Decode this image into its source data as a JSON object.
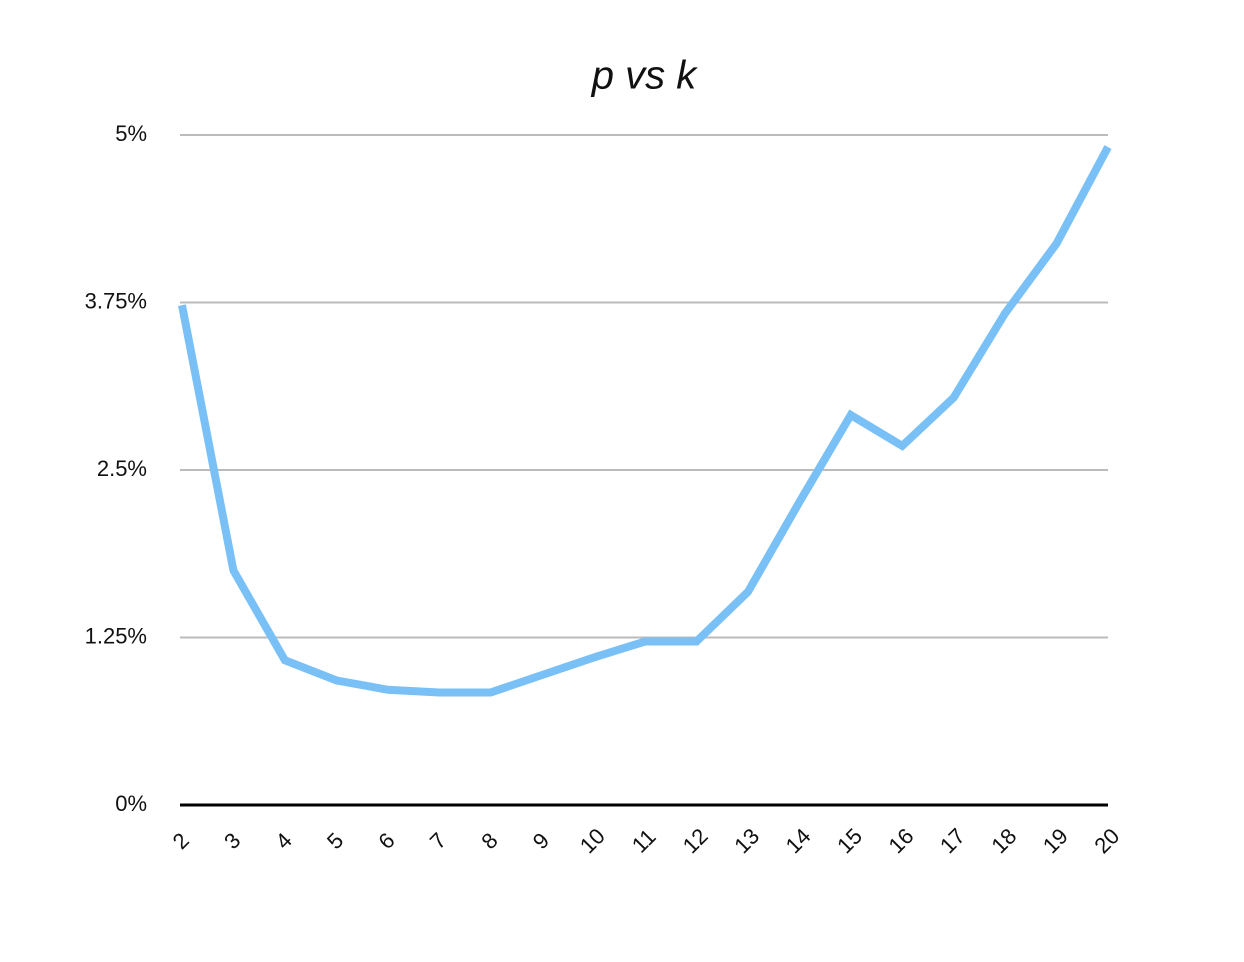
{
  "chart_data": {
    "type": "line",
    "title": "p vs k",
    "categories": [
      "2",
      "3",
      "4",
      "5",
      "6",
      "7",
      "8",
      "9",
      "10",
      "11",
      "12",
      "13",
      "14",
      "15",
      "16",
      "17",
      "18",
      "19",
      "20"
    ],
    "series": [
      {
        "name": "p",
        "color": "#79c0f7",
        "values": [
          3.73,
          1.75,
          1.08,
          0.93,
          0.86,
          0.84,
          0.84,
          0.97,
          1.1,
          1.22,
          1.22,
          1.59,
          2.26,
          2.91,
          2.68,
          3.04,
          3.67,
          4.19,
          4.91
        ]
      }
    ],
    "ylim": [
      0,
      5
    ],
    "yticks": [
      {
        "value": 0,
        "label": "0%"
      },
      {
        "value": 1.25,
        "label": "1.25%"
      },
      {
        "value": 2.5,
        "label": "2.5%"
      },
      {
        "value": 3.75,
        "label": "3.75%"
      },
      {
        "value": 5,
        "label": "5%"
      }
    ],
    "grid": true
  }
}
